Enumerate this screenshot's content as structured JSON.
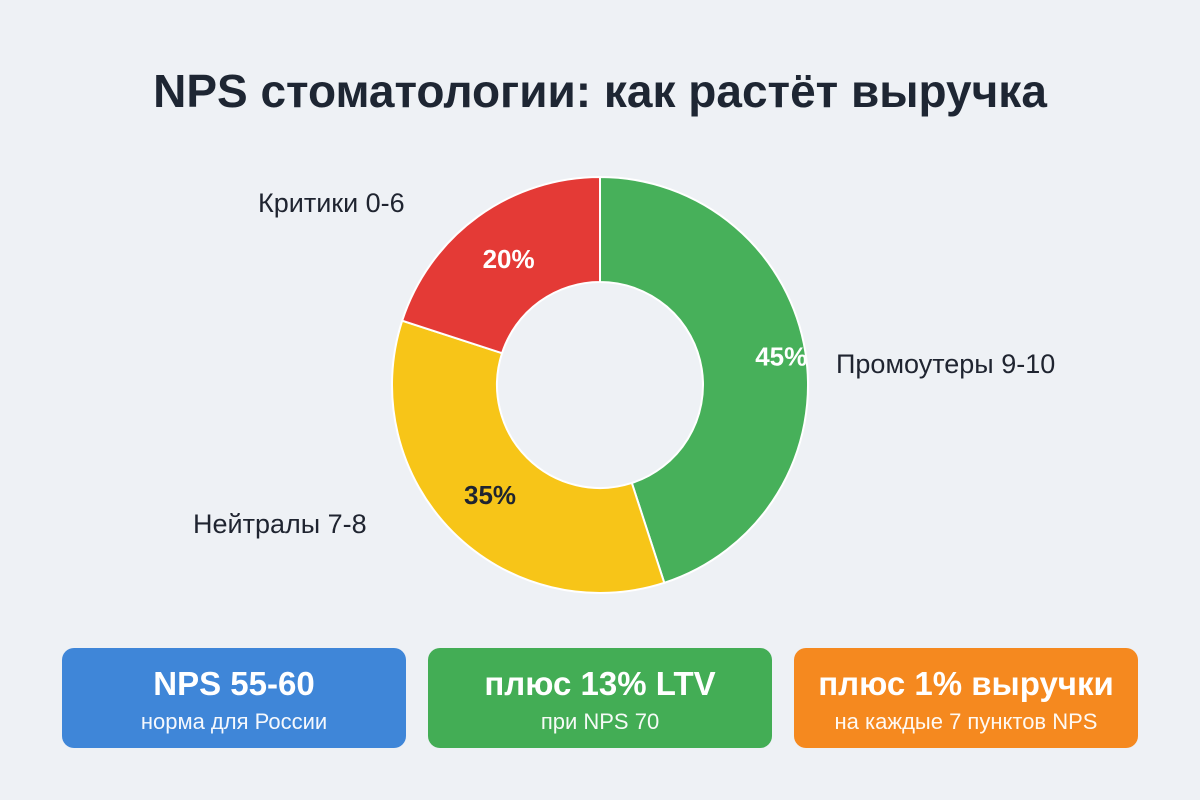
{
  "title": "NPS стоматологии: как растёт выручка",
  "chart_data": {
    "type": "pie",
    "donut": true,
    "title": "NPS стоматологии: как растёт выручка",
    "slices": [
      {
        "label": "Промоутеры 9-10",
        "value": 45,
        "value_label": "45%",
        "color": "#47b05a"
      },
      {
        "label": "Нейтралы 7-8",
        "value": 35,
        "value_label": "35%",
        "color": "#f7c518"
      },
      {
        "label": "Критики 0-6",
        "value": 20,
        "value_label": "20%",
        "color": "#e43a36"
      }
    ]
  },
  "cards": [
    {
      "heading": "NPS 55-60",
      "sub": "норма для России",
      "color": "#3f86d8"
    },
    {
      "heading": "плюс 13% LTV",
      "sub": "при NPS 70",
      "color": "#43ad55"
    },
    {
      "heading": "плюс 1% выручки",
      "sub": "на каждые 7 пунктов NPS",
      "color": "#f5891f"
    }
  ]
}
